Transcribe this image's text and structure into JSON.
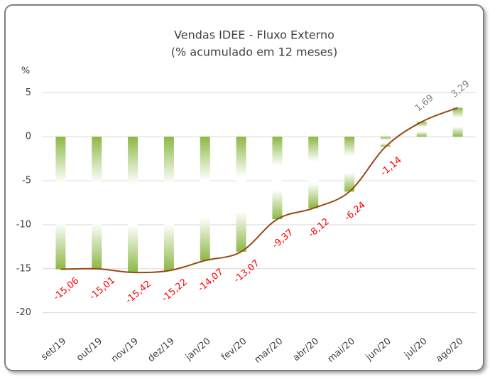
{
  "chart_data": {
    "type": "bar",
    "title": "Vendas IDEE - Fluxo Externo",
    "subtitle": "(% acumulado em 12 meses)",
    "y_unit": "%",
    "categories": [
      "set/19",
      "out/19",
      "nov/19",
      "dez/19",
      "jan/20",
      "fev/20",
      "mar/20",
      "abr/20",
      "mai/20",
      "jun/20",
      "jul/20",
      "ago/20"
    ],
    "series": [
      {
        "values": [
          -15.06,
          -15.01,
          -15.42,
          -15.22,
          -14.07,
          -13.07,
          -9.37,
          -8.12,
          -6.24,
          -1.14,
          1.69,
          3.29
        ],
        "value_labels": [
          "-15,06",
          "-15,01",
          "-15,42",
          "-15,22",
          "-14,07",
          "-13,07",
          "-9,37",
          "-8,12",
          "-6,24",
          "-1,14",
          "1,69",
          "3,29"
        ],
        "color": "#8cb845",
        "line_color": "#984a12",
        "negative_label_color": "#ff0000",
        "positive_label_color": "#808080"
      }
    ],
    "ylim": [
      -21,
      6
    ],
    "yticks": [
      -20,
      -15,
      -10,
      -5,
      0,
      5
    ],
    "grid": true
  }
}
